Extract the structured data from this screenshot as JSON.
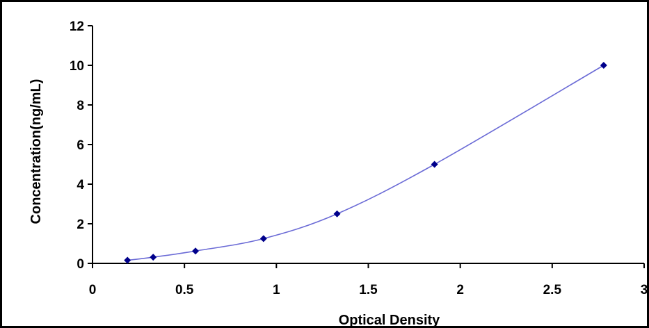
{
  "chart_data": {
    "type": "scatter",
    "title": "",
    "xlabel": "Optical Density",
    "ylabel": "Concentration(ng/mL)",
    "xlim": [
      0,
      3
    ],
    "ylim": [
      0,
      12
    ],
    "x_ticks": [
      0,
      0.5,
      1,
      1.5,
      2,
      2.5,
      3
    ],
    "x_tick_labels": [
      "0",
      "0.5",
      "1",
      "1.5",
      "2",
      "2.5",
      "3"
    ],
    "y_ticks": [
      0,
      2,
      4,
      6,
      8,
      10,
      12
    ],
    "y_tick_labels": [
      "0",
      "2",
      "4",
      "6",
      "8",
      "10",
      "12"
    ],
    "grid": false,
    "legend": "none",
    "series": [
      {
        "x": [
          0.19,
          0.33,
          0.56,
          0.93,
          1.33,
          1.86,
          2.78
        ],
        "y": [
          0.156,
          0.313,
          0.625,
          1.25,
          2.5,
          5.0,
          10.0
        ],
        "color": "#00008b",
        "marker": "diamond",
        "fit_line": true,
        "fit_color": "#6b6bd6"
      }
    ]
  }
}
